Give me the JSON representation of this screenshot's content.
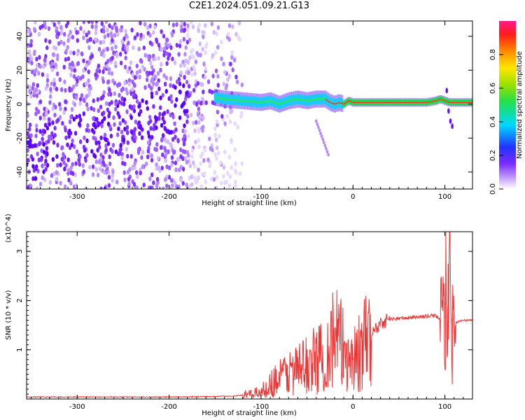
{
  "title": "C2E1.2024.051.09.21.G13",
  "chart_data": [
    {
      "type": "heatmap",
      "title": "",
      "xlabel": "Height of straight line (km)",
      "ylabel": "Frequency (Hz)",
      "xlim": [
        -355,
        130
      ],
      "ylim": [
        -50,
        49
      ],
      "xticks": [
        "-300",
        "-200",
        "-100",
        "0",
        "100"
      ],
      "yticks": [
        "-40",
        "-20",
        "0",
        "20",
        "40"
      ],
      "colorbar": {
        "label": "Normalized spectral amplitude",
        "range": [
          0,
          1
        ],
        "ticks": [
          "0.0",
          "0.2",
          "0.4",
          "0.6",
          "0.8"
        ]
      },
      "ridge": {
        "description_values": "frequency vs height of strong spectral ridge",
        "x": [
          -150,
          -140,
          -120,
          -100,
          -90,
          -80,
          -70,
          -60,
          -50,
          -40,
          -30,
          -25,
          -20,
          -15,
          -10,
          -5,
          0,
          10,
          20,
          40,
          60,
          80,
          90,
          95,
          100,
          105,
          110,
          130
        ],
        "y": [
          4,
          3,
          2,
          1,
          2,
          0,
          2,
          3,
          2,
          3,
          3,
          1,
          0,
          1,
          0,
          2,
          1,
          1,
          1,
          1,
          1,
          1,
          2,
          3,
          2,
          1,
          1,
          1
        ]
      }
    },
    {
      "type": "line",
      "title": "",
      "xlabel": "Height of straight line (km)",
      "ylabel": "SNR (10 * v/v)",
      "multiplier": "(x10^4)",
      "xlim": [
        -355,
        130
      ],
      "ylim": [
        0,
        3.4
      ],
      "xticks": [
        "-300",
        "-200",
        "-100",
        "0",
        "100"
      ],
      "yticks": [
        "1",
        "2",
        "3"
      ],
      "color": "#ee3333",
      "series": [
        {
          "x": [
            -355,
            -300,
            -250,
            -200,
            -150,
            -130,
            -120,
            -110,
            -100,
            -90,
            -80,
            -70,
            -60,
            -50,
            -40,
            -30,
            -20,
            -10,
            0,
            10,
            20,
            30,
            40,
            60,
            80,
            90,
            95,
            100,
            103,
            105,
            108,
            112,
            120,
            130
          ],
          "y": [
            0.04,
            0.04,
            0.04,
            0.04,
            0.05,
            0.06,
            0.08,
            0.1,
            0.15,
            0.3,
            0.45,
            0.55,
            0.6,
            0.7,
            0.8,
            0.9,
            1.3,
            1.0,
            0.8,
            1.0,
            1.3,
            1.55,
            1.62,
            1.65,
            1.68,
            1.7,
            1.6,
            1.5,
            1.8,
            2.5,
            1.3,
            1.55,
            1.6,
            1.6
          ]
        }
      ]
    }
  ]
}
